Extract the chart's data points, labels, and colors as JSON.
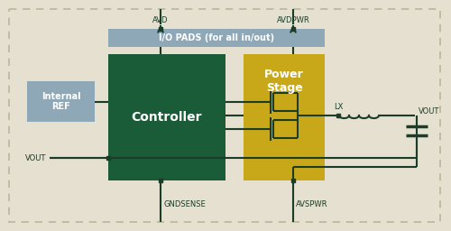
{
  "bg_color": "#e5e0cf",
  "outer_border_color": "#b8b89a",
  "io_pads_color": "#8fa8b8",
  "io_pads_text": "I/O PADS (for all in/out)",
  "controller_color": "#1a5c38",
  "controller_text": "Controller",
  "internal_ref_color": "#8fa8b8",
  "internal_ref_text": "Internal\nREF",
  "power_stage_color": "#c8a818",
  "power_stage_text": "Power\nStage",
  "line_color": "#1a3c28",
  "node_color": "#1a3c28",
  "text_color": "#1a3c28",
  "label_avd": "AVD",
  "label_avdpwr": "AVDPWR",
  "label_gndsense": "GNDSENSE",
  "label_avspwr": "AVSPWR",
  "label_vout_left": "VOUT",
  "label_lx": "LX",
  "label_vout_right": "VOUT"
}
